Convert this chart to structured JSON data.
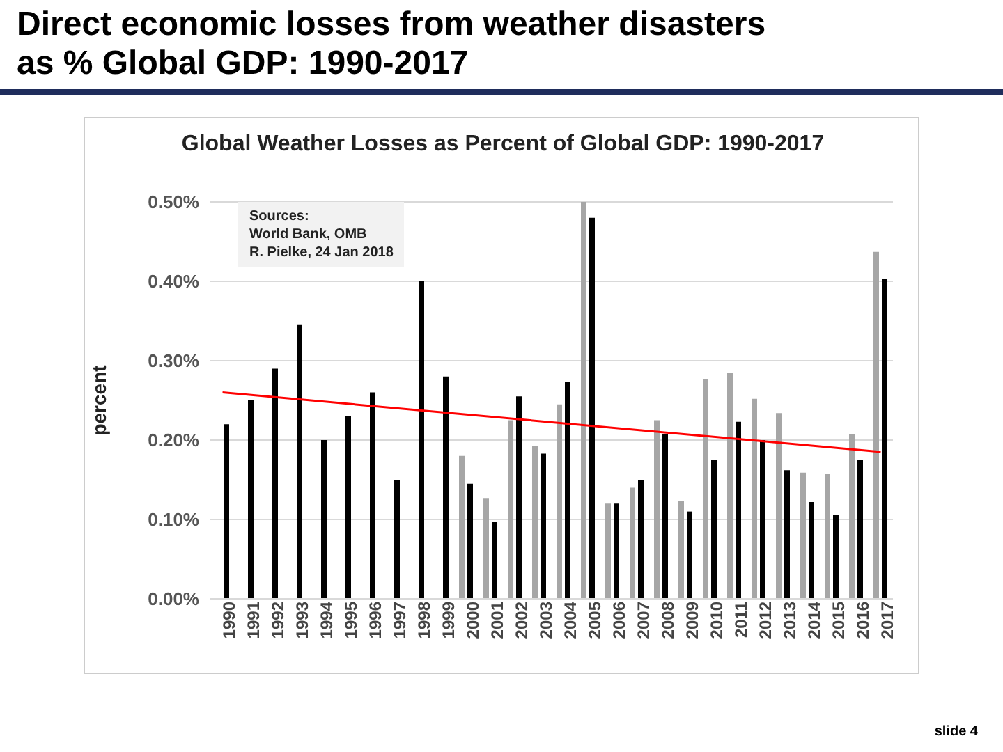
{
  "chart_data": {
    "type": "bar",
    "title": "Direct economic losses from weather disasters\nas % Global GDP: 1990-2017",
    "subtitle": "Global Weather Losses as Percent of Global GDP: 1990-2017",
    "ylabel": "percent",
    "annotations": [
      "Sources:\nWorld Bank, OMB\nR. Pielke, 24 Jan 2018",
      "slide 4"
    ],
    "categories": [
      "1990",
      "1991",
      "1992",
      "1993",
      "1994",
      "1995",
      "1996",
      "1997",
      "1998",
      "1999",
      "2000",
      "2001",
      "2002",
      "2003",
      "2004",
      "2005",
      "2006",
      "2007",
      "2008",
      "2009",
      "2010",
      "2011",
      "2012",
      "2013",
      "2014",
      "2015",
      "2016",
      "2017"
    ],
    "series": [
      {
        "color": "#a6a6a6",
        "values": [
          null,
          null,
          null,
          null,
          null,
          null,
          null,
          null,
          null,
          null,
          0.18,
          0.127,
          0.225,
          0.192,
          0.245,
          0.5,
          0.12,
          0.14,
          0.225,
          0.123,
          0.277,
          0.285,
          0.252,
          0.234,
          0.159,
          0.157,
          0.208,
          0.437
        ]
      },
      {
        "color": "#000000",
        "values": [
          0.22,
          0.25,
          0.29,
          0.345,
          0.2,
          0.23,
          0.26,
          0.15,
          0.4,
          0.28,
          0.145,
          0.097,
          0.255,
          0.183,
          0.273,
          0.48,
          0.12,
          0.15,
          0.207,
          0.11,
          0.175,
          0.223,
          0.2,
          0.162,
          0.122,
          0.106,
          0.175,
          0.403
        ]
      },
      {
        "type": "line",
        "color": "#ff0000",
        "values": [
          0.26,
          null,
          null,
          null,
          null,
          null,
          null,
          null,
          null,
          null,
          null,
          null,
          null,
          null,
          null,
          null,
          null,
          null,
          null,
          null,
          null,
          null,
          null,
          null,
          null,
          null,
          null,
          0.185
        ]
      }
    ],
    "ylim": [
      0,
      0.5
    ],
    "yticks": [
      {
        "value": 0,
        "label": "0.00%"
      },
      {
        "value": 0.1,
        "label": "0.10%"
      },
      {
        "value": 0.2,
        "label": "0.20%"
      },
      {
        "value": 0.3,
        "label": "0.30%"
      },
      {
        "value": 0.4,
        "label": "0.40%"
      },
      {
        "value": 0.5,
        "label": "0.50%"
      }
    ],
    "grid": "y",
    "legend": false,
    "marker": "none"
  }
}
